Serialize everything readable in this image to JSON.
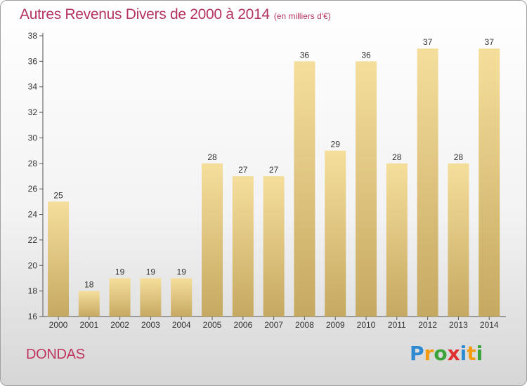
{
  "header": {
    "title": "Autres Revenus Divers de 2000 à 2014",
    "unit": "(en milliers d'€)"
  },
  "footer": {
    "commune": "DONDAS",
    "logo": {
      "text": "Proxiti",
      "letters": [
        {
          "char": "P",
          "color": "#2e8bd2"
        },
        {
          "char": "r",
          "color": "#f39c12"
        },
        {
          "char": "o",
          "color": "#3aa33a"
        },
        {
          "char": "x",
          "color": "#e03131"
        },
        {
          "char": "i",
          "color": "#2e8bd2"
        },
        {
          "char": "t",
          "color": "#f39c12"
        },
        {
          "char": "i",
          "color": "#3aa33a"
        }
      ]
    }
  },
  "colors": {
    "title": "#b5345f",
    "bar_top": "#f5de9c",
    "bar_bottom": "#c6a961",
    "axis": "#555555"
  },
  "chart_data": {
    "type": "bar",
    "categories": [
      "2000",
      "2001",
      "2002",
      "2003",
      "2004",
      "2005",
      "2006",
      "2007",
      "2008",
      "2009",
      "2010",
      "2011",
      "2012",
      "2013",
      "2014"
    ],
    "values": [
      25,
      18,
      19,
      19,
      19,
      28,
      27,
      27,
      36,
      29,
      36,
      28,
      37,
      28,
      37
    ],
    "yticks": [
      16,
      18,
      20,
      22,
      24,
      26,
      28,
      30,
      32,
      34,
      36,
      38
    ],
    "ylim": [
      16,
      38
    ],
    "grid": false,
    "data_labels": true
  }
}
